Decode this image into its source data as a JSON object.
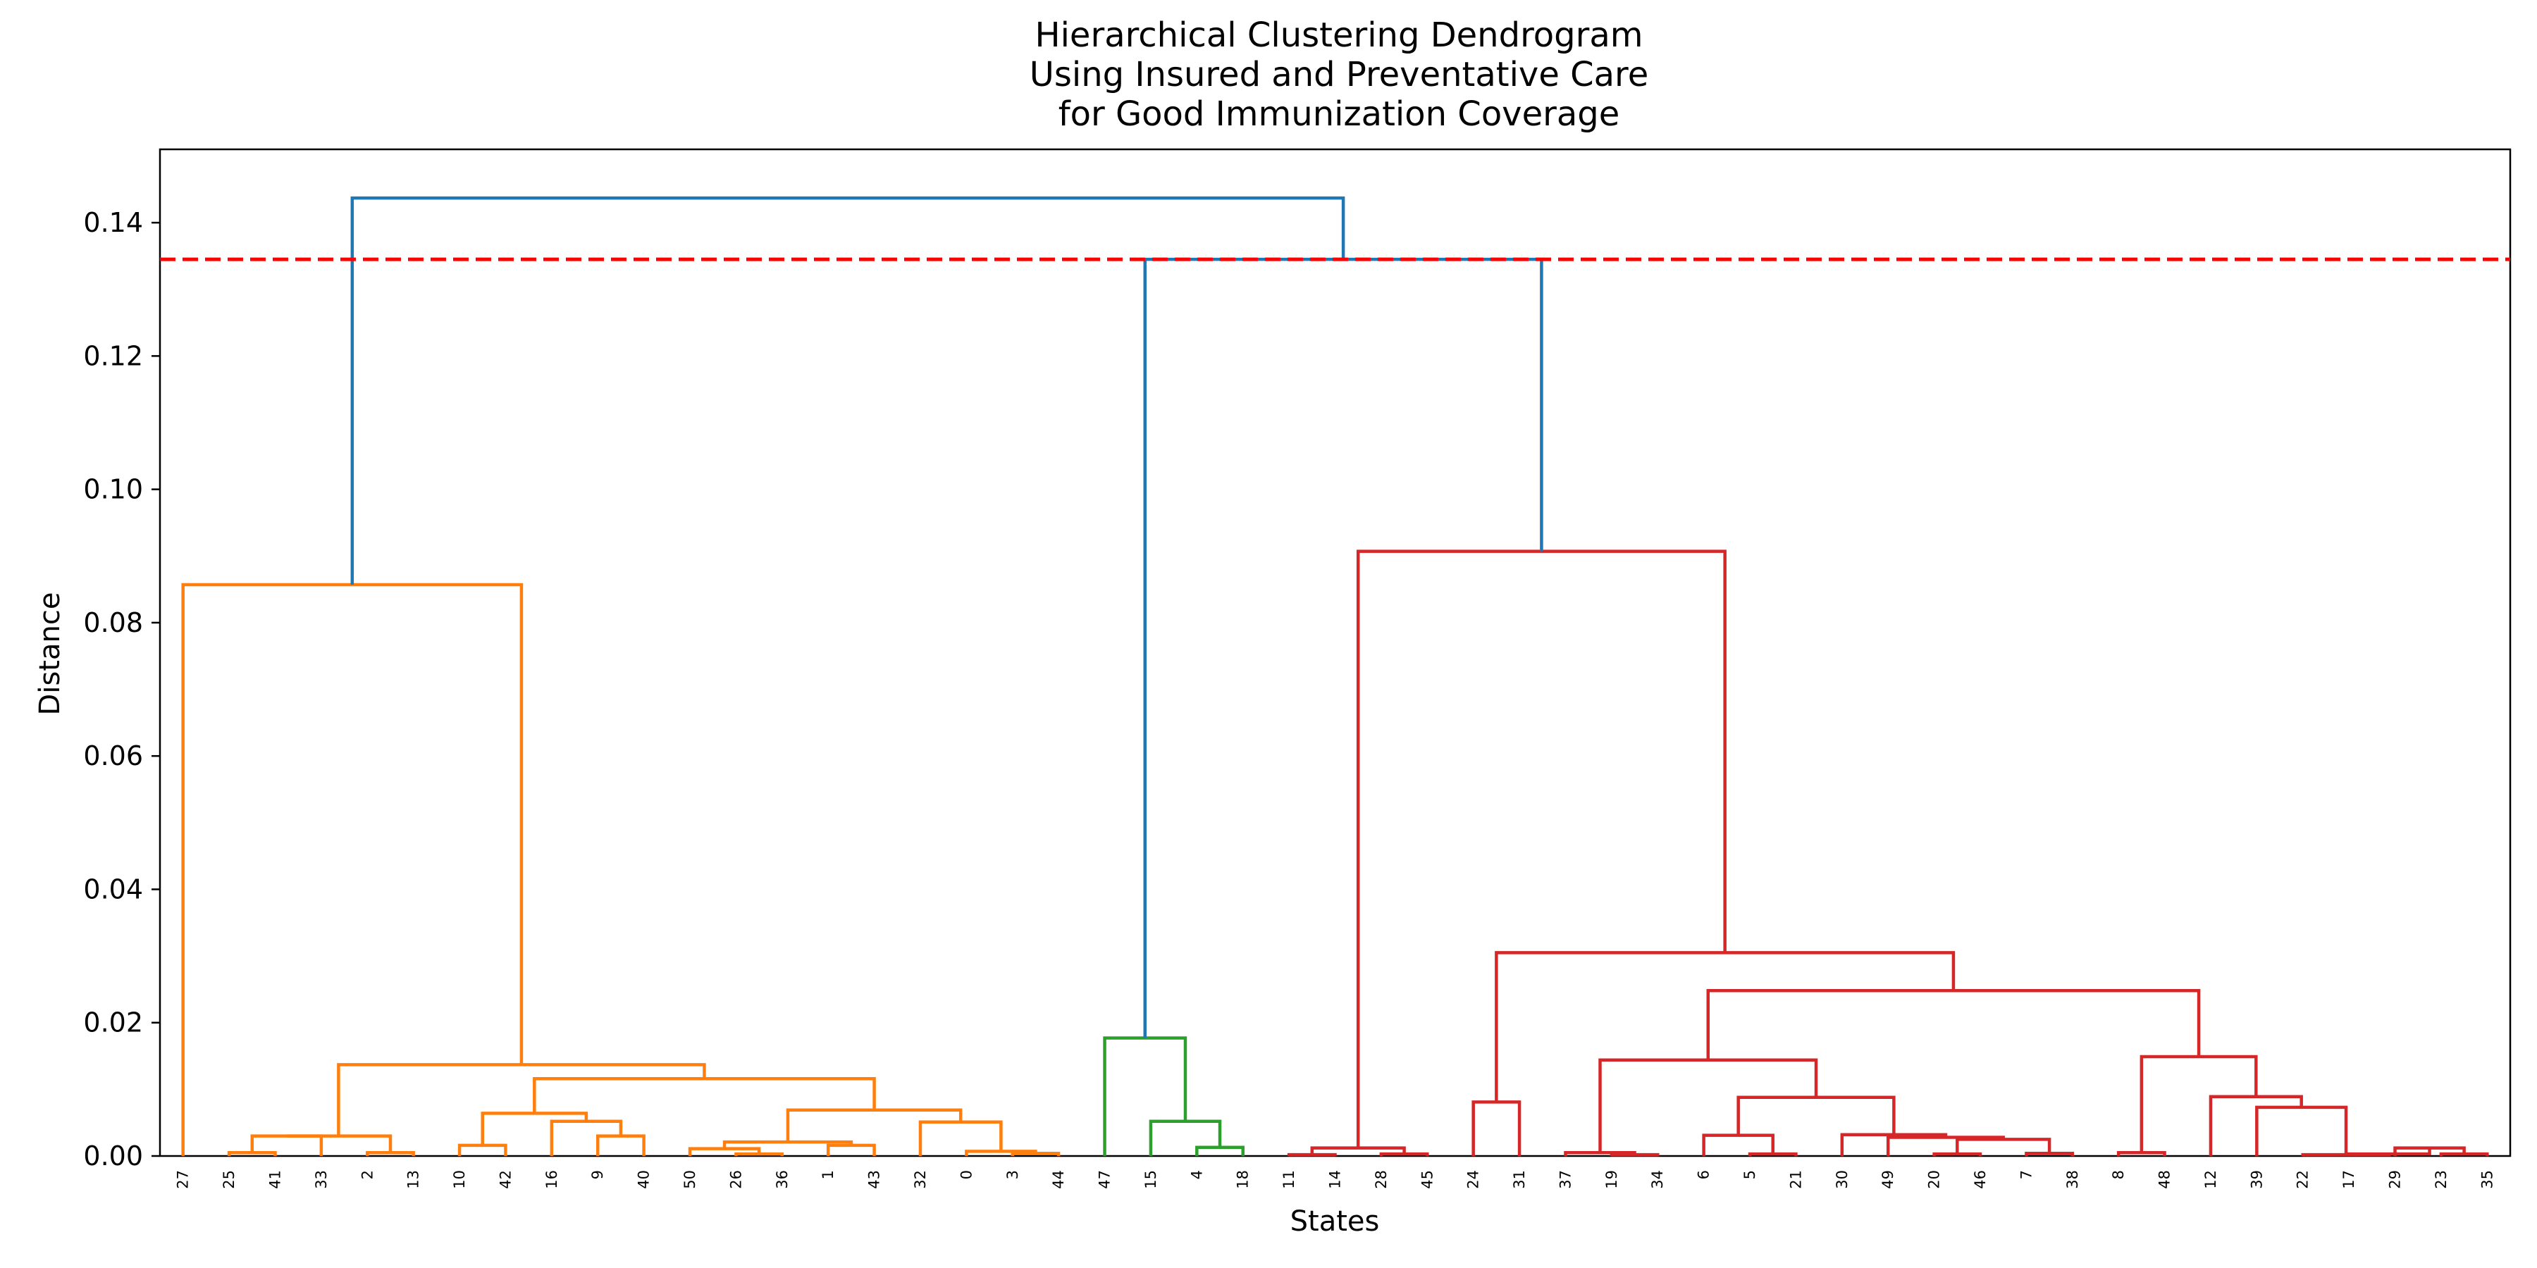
{
  "chart_data": {
    "type": "dendrogram",
    "title_lines": [
      "Hierarchical Clustering Dendrogram",
      "Using Insured and Preventative Care",
      "for Good Immunization Coverage"
    ],
    "xlabel": "States",
    "ylabel": "Distance",
    "ylim": [
      0,
      0.151
    ],
    "yticks": [
      "0.00",
      "0.02",
      "0.04",
      "0.06",
      "0.08",
      "0.10",
      "0.12",
      "0.14"
    ],
    "ytick_values": [
      0,
      0.02,
      0.04,
      0.06,
      0.08,
      0.1,
      0.12,
      0.14
    ],
    "cut_line": {
      "distance": 0.1345,
      "color": "#ff0000",
      "style": "dashed"
    },
    "leaves": [
      "27",
      "25",
      "41",
      "33",
      "2",
      "13",
      "10",
      "42",
      "16",
      "9",
      "40",
      "50",
      "26",
      "36",
      "1",
      "43",
      "32",
      "0",
      "3",
      "44",
      "47",
      "15",
      "4",
      "18",
      "11",
      "14",
      "28",
      "45",
      "24",
      "31",
      "37",
      "19",
      "34",
      "6",
      "5",
      "21",
      "30",
      "49",
      "20",
      "46",
      "7",
      "38",
      "8",
      "48",
      "12",
      "39",
      "22",
      "17",
      "29",
      "23",
      "35"
    ],
    "cluster_colors": {
      "above": "#1f77b4",
      "c1": "#ff7f0e",
      "c2": "#2ca02c",
      "c3": "#d62728"
    },
    "links": [
      {
        "a": "L:25",
        "b": "L:41",
        "h": 0.0005,
        "c": "c1"
      },
      {
        "a": "L:33",
        "b": "L:25|41",
        "h": 0.003,
        "c": "c1"
      },
      {
        "a": "L:2",
        "b": "L:13",
        "h": 0.0005,
        "c": "c1"
      },
      {
        "a": "N:33",
        "b": "N:2",
        "h": 0.003,
        "c": "c1"
      },
      {
        "a": "L:10",
        "b": "L:42",
        "h": 0.0016,
        "c": "c1"
      },
      {
        "a": "L:9",
        "b": "L:40",
        "h": 0.003,
        "c": "c1"
      },
      {
        "a": "L:16",
        "b": "N:9",
        "h": 0.0052,
        "c": "c1"
      },
      {
        "a": "N:10",
        "b": "N:16",
        "h": 0.0064,
        "c": "c1"
      },
      {
        "a": "L:26",
        "b": "L:36",
        "h": 0.0003,
        "c": "c1"
      },
      {
        "a": "L:50",
        "b": "N:26",
        "h": 0.0011,
        "c": "c1"
      },
      {
        "a": "L:1",
        "b": "L:43",
        "h": 0.0016,
        "c": "c1"
      },
      {
        "a": "N:50",
        "b": "N:1",
        "h": 0.0021,
        "c": "c1"
      },
      {
        "a": "L:3",
        "b": "L:44",
        "h": 0.0004,
        "c": "c1"
      },
      {
        "a": "L:0",
        "b": "N:3",
        "h": 0.0007,
        "c": "c1"
      },
      {
        "a": "L:32",
        "b": "N:0",
        "h": 0.0051,
        "c": "c1"
      },
      {
        "a": "N:50b",
        "b": "N:32",
        "h": 0.0069,
        "c": "c1"
      },
      {
        "a": "N:10b",
        "b": "N:50c",
        "h": 0.0116,
        "c": "c1"
      },
      {
        "a": "N:33b",
        "b": "N:10c",
        "h": 0.0137,
        "c": "c1"
      },
      {
        "a": "L:27",
        "b": "N:33c",
        "h": 0.0857,
        "c": "c1"
      },
      {
        "a": "L:4",
        "b": "L:18",
        "h": 0.0013,
        "c": "c2"
      },
      {
        "a": "L:15",
        "b": "N:4",
        "h": 0.0052,
        "c": "c2"
      },
      {
        "a": "L:47",
        "b": "N:15",
        "h": 0.0177,
        "c": "c2"
      },
      {
        "a": "L:11",
        "b": "L:14",
        "h": 0.0002,
        "c": "c3"
      },
      {
        "a": "L:28",
        "b": "L:45",
        "h": 0.0003,
        "c": "c3"
      },
      {
        "a": "N:11",
        "b": "N:28",
        "h": 0.0012,
        "c": "c3"
      },
      {
        "a": "L:24",
        "b": "L:31",
        "h": 0.0081,
        "c": "c3"
      },
      {
        "a": "L:19",
        "b": "L:34",
        "h": 0.0002,
        "c": "c3"
      },
      {
        "a": "L:37",
        "b": "N:19",
        "h": 0.0005,
        "c": "c3"
      },
      {
        "a": "L:5",
        "b": "L:21",
        "h": 0.0003,
        "c": "c3"
      },
      {
        "a": "L:6",
        "b": "N:5",
        "h": 0.0031,
        "c": "c3"
      },
      {
        "a": "L:20",
        "b": "L:46",
        "h": 0.0003,
        "c": "c3"
      },
      {
        "a": "L:7",
        "b": "L:38",
        "h": 0.0004,
        "c": "c3"
      },
      {
        "a": "N:20",
        "b": "N:7",
        "h": 0.0025,
        "c": "c3"
      },
      {
        "a": "L:49",
        "b": "N:20b",
        "h": 0.0028,
        "c": "c3"
      },
      {
        "a": "L:30",
        "b": "N:49",
        "h": 0.0032,
        "c": "c3"
      },
      {
        "a": "N:6",
        "b": "N:30",
        "h": 0.0088,
        "c": "c3"
      },
      {
        "a": "N:37",
        "b": "N:6b",
        "h": 0.0144,
        "c": "c3"
      },
      {
        "a": "L:8",
        "b": "L:48",
        "h": 0.0005,
        "c": "c3"
      },
      {
        "a": "L:23",
        "b": "L:35",
        "h": 0.0003,
        "c": "c3"
      },
      {
        "a": "L:29",
        "b": "N:23",
        "h": 0.0012,
        "c": "c3"
      },
      {
        "a": "L:17",
        "b": "N:29",
        "h": 0.0003,
        "c": "c3"
      },
      {
        "a": "L:22",
        "b": "N:17",
        "h": 0.0002,
        "c": "c3"
      },
      {
        "a": "L:39",
        "b": "N:22",
        "h": 0.0073,
        "c": "c3"
      },
      {
        "a": "L:12",
        "b": "N:39",
        "h": 0.0089,
        "c": "c3"
      },
      {
        "a": "N:8",
        "b": "N:12",
        "h": 0.0149,
        "c": "c3"
      },
      {
        "a": "N:37b",
        "b": "N:8b",
        "h": 0.0248,
        "c": "c3"
      },
      {
        "a": "N:24",
        "b": "N:37c",
        "h": 0.0305,
        "c": "c3"
      },
      {
        "a": "N:11b",
        "b": "N:24b",
        "h": 0.0907,
        "c": "c3"
      },
      {
        "a": "N:47",
        "b": "N:11c",
        "h": 0.1345,
        "c": "above"
      },
      {
        "a": "N:27",
        "b": "N:47b",
        "h": 0.1437,
        "c": "above"
      }
    ]
  }
}
